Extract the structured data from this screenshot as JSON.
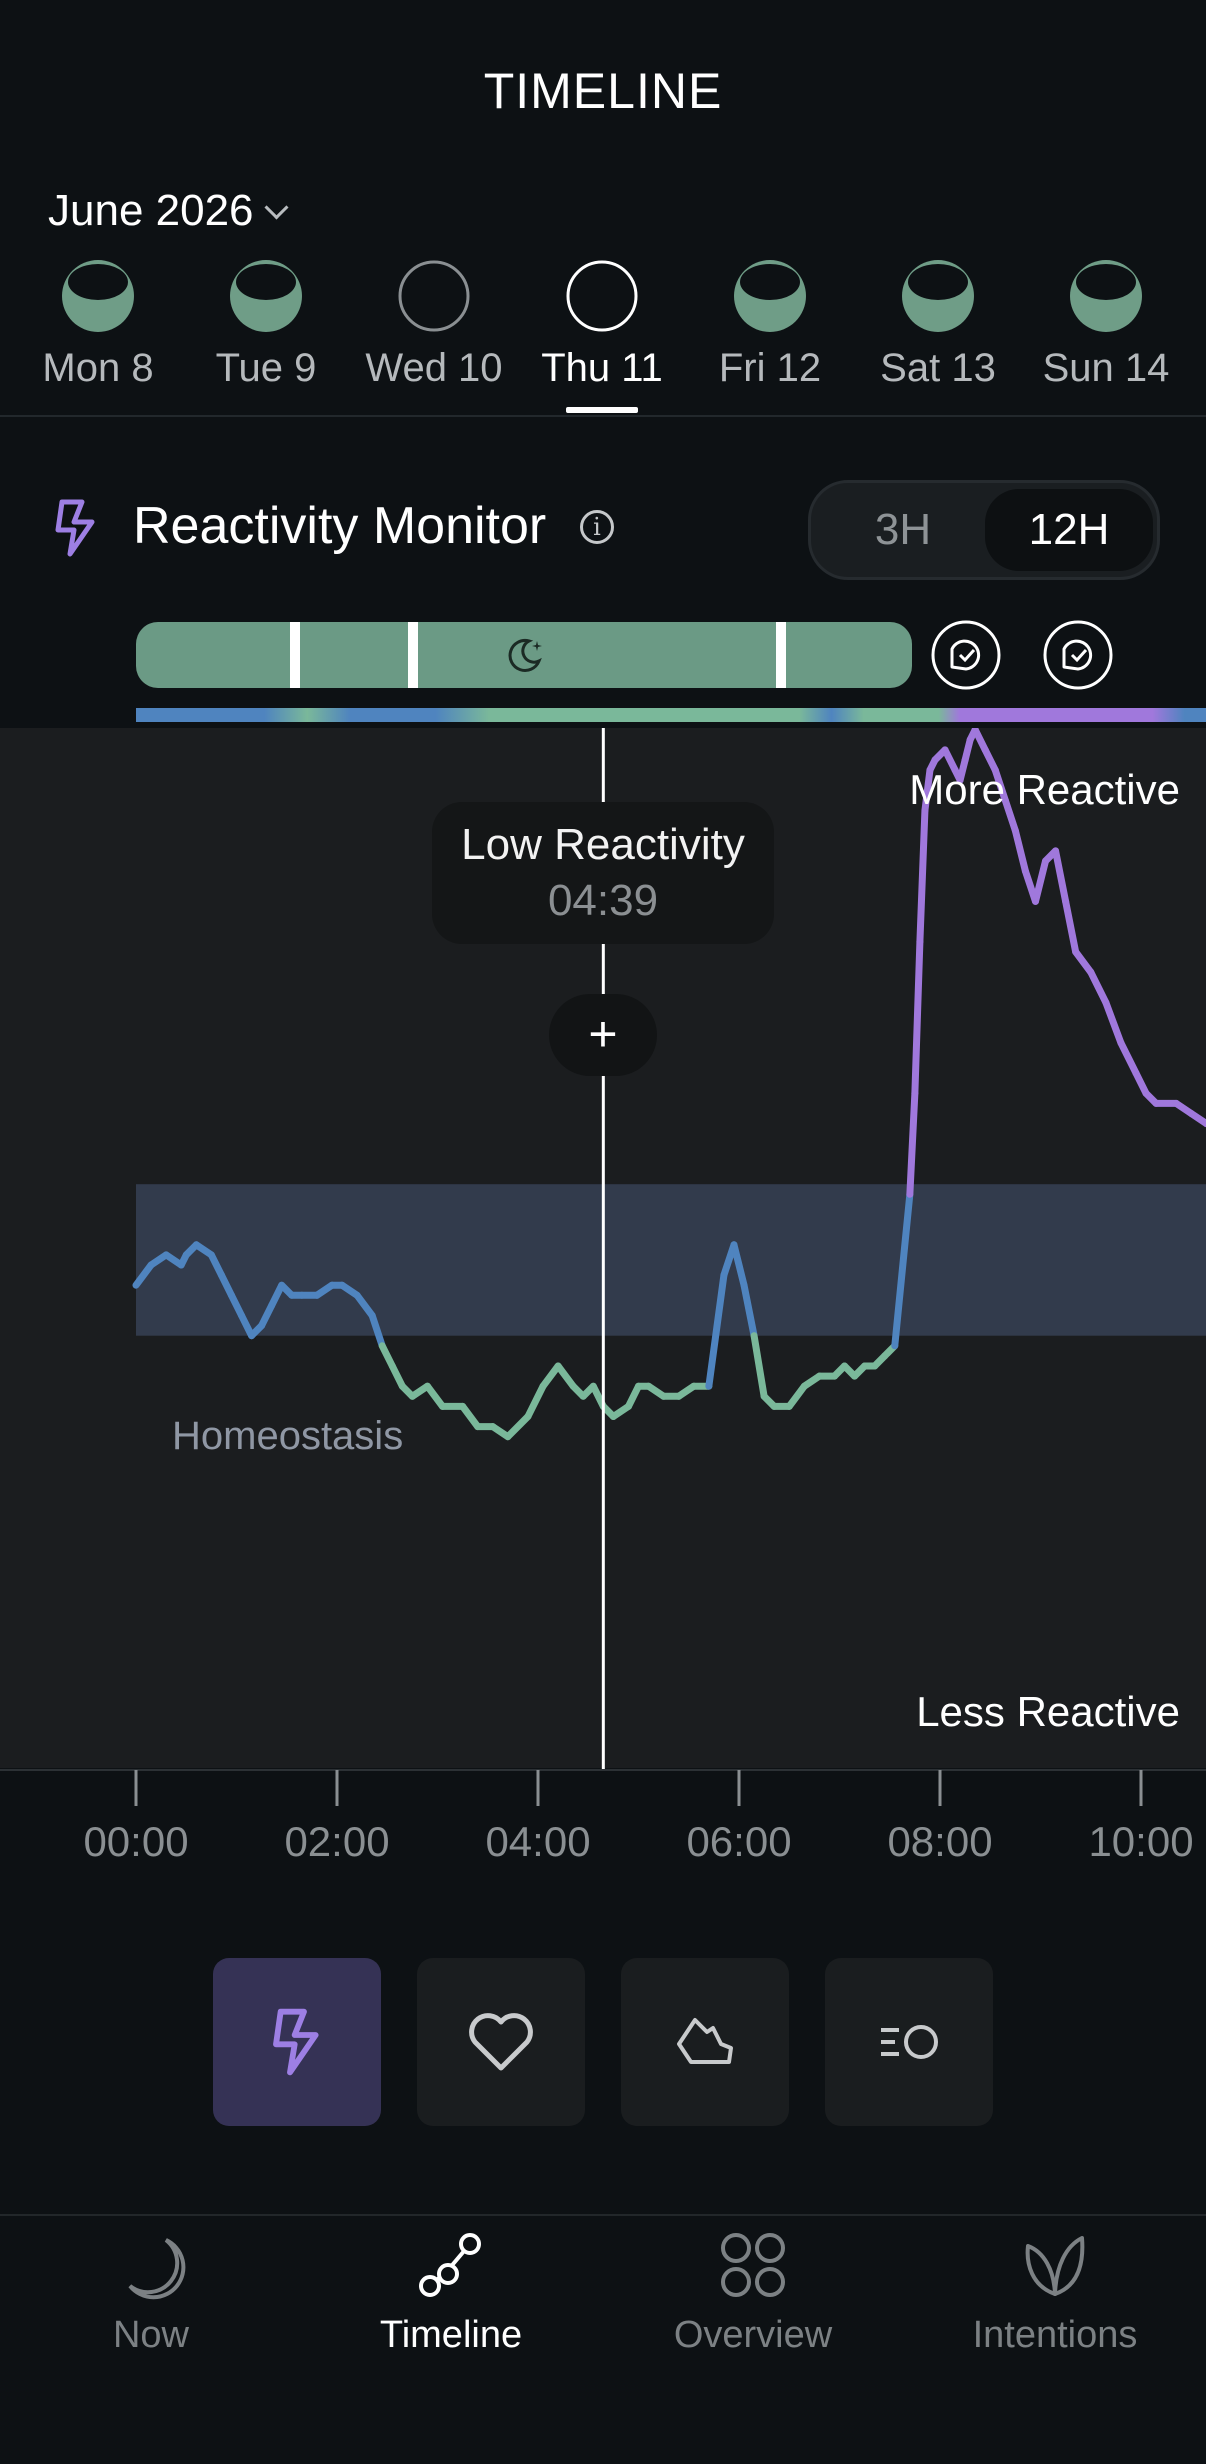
{
  "header": {
    "title": "TIMELINE"
  },
  "month": {
    "label": "June 2026"
  },
  "days": [
    {
      "label": "Mon 8",
      "state": "sleep"
    },
    {
      "label": "Tue 9",
      "state": "sleep"
    },
    {
      "label": "Wed 10",
      "state": "empty"
    },
    {
      "label": "Thu 11",
      "state": "selected"
    },
    {
      "label": "Fri 12",
      "state": "sleep"
    },
    {
      "label": "Sat 13",
      "state": "sleep"
    },
    {
      "label": "Sun 14",
      "state": "sleep"
    }
  ],
  "monitor": {
    "title": "Reactivity Monitor",
    "info_icon": "info-icon",
    "range_options": [
      "3H",
      "12H"
    ],
    "range_selected": "12H"
  },
  "tooltip": {
    "title": "Low Reactivity",
    "time": "04:39"
  },
  "chart_labels": {
    "top": "More Reactive",
    "bottom": "Less Reactive",
    "band": "Homeostasis"
  },
  "chart_data": {
    "type": "line",
    "x_ticks": [
      "00:00",
      "02:00",
      "04:00",
      "06:00",
      "08:00",
      "10:00"
    ],
    "cursor_time": "04:39",
    "colors": {
      "low": "#7ab89a",
      "homeostasis": "#4f84bf",
      "high": "#a078dc",
      "band": "#323b4c"
    },
    "x": [
      0,
      0.15,
      0.3,
      0.45,
      0.5,
      0.6,
      0.75,
      0.85,
      0.95,
      1.05,
      1.15,
      1.25,
      1.35,
      1.45,
      1.55,
      1.65,
      1.8,
      1.95,
      2.05,
      2.2,
      2.35,
      2.45,
      2.55,
      2.65,
      2.75,
      2.9,
      3.05,
      3.25,
      3.4,
      3.55,
      3.7,
      3.9,
      4.05,
      4.2,
      4.35,
      4.45,
      4.55,
      4.65,
      4.75,
      4.9,
      5.0,
      5.1,
      5.25,
      5.4,
      5.55,
      5.7,
      5.85,
      5.95,
      6.05,
      6.15,
      6.25,
      6.35,
      6.5,
      6.65,
      6.8,
      6.95,
      7.05,
      7.15,
      7.25,
      7.35,
      7.45,
      7.55,
      7.7,
      7.75,
      7.8,
      7.85,
      7.9,
      7.95,
      8.05,
      8.15,
      8.2,
      8.25,
      8.3,
      8.35,
      8.45,
      8.55,
      8.65,
      8.75,
      8.85,
      8.95,
      9.05,
      9.15,
      9.25,
      9.35,
      9.5,
      9.65,
      9.8,
      9.95,
      10.05,
      10.15,
      10.35,
      10.5,
      10.65,
      10.75
    ],
    "y": [
      48,
      50,
      51,
      50,
      51,
      52,
      51,
      49,
      47,
      45,
      43,
      44,
      46,
      48,
      47,
      47,
      47,
      48,
      48,
      47,
      45,
      42,
      40,
      38,
      37,
      38,
      36,
      36,
      34,
      34,
      33,
      35,
      38,
      40,
      38,
      37,
      38,
      36,
      35,
      36,
      38,
      38,
      37,
      37,
      38,
      38,
      49,
      52,
      48,
      43,
      37,
      36,
      36,
      38,
      39,
      39,
      40,
      39,
      40,
      40,
      41,
      42,
      57,
      67,
      82,
      95,
      99,
      100,
      101,
      99,
      98,
      100,
      102,
      103,
      101,
      99,
      96,
      93,
      89,
      86,
      90,
      91,
      86,
      81,
      79,
      76,
      72,
      69,
      67,
      66,
      66,
      65,
      64,
      65
    ],
    "xlim": [
      0,
      10.75
    ],
    "homeostasis_range": [
      43,
      58
    ]
  },
  "activity_bar": {
    "moon_icon": "moon-icon",
    "bubble_icons": [
      "chat-check-icon",
      "chat-check-icon"
    ]
  },
  "mode_buttons": [
    {
      "name": "reactivity",
      "icon": "bolt-icon",
      "active": true
    },
    {
      "name": "heart",
      "icon": "heart-icon",
      "active": false
    },
    {
      "name": "steps",
      "icon": "shoe-icon",
      "active": false
    },
    {
      "name": "breathe",
      "icon": "breath-icon",
      "active": false
    }
  ],
  "nav": [
    {
      "label": "Now",
      "icon": "moon-arc-icon",
      "active": false
    },
    {
      "label": "Timeline",
      "icon": "timeline-nodes-icon",
      "active": true
    },
    {
      "label": "Overview",
      "icon": "grid-circles-icon",
      "active": false
    },
    {
      "label": "Intentions",
      "icon": "leaf-icon",
      "active": false
    }
  ]
}
